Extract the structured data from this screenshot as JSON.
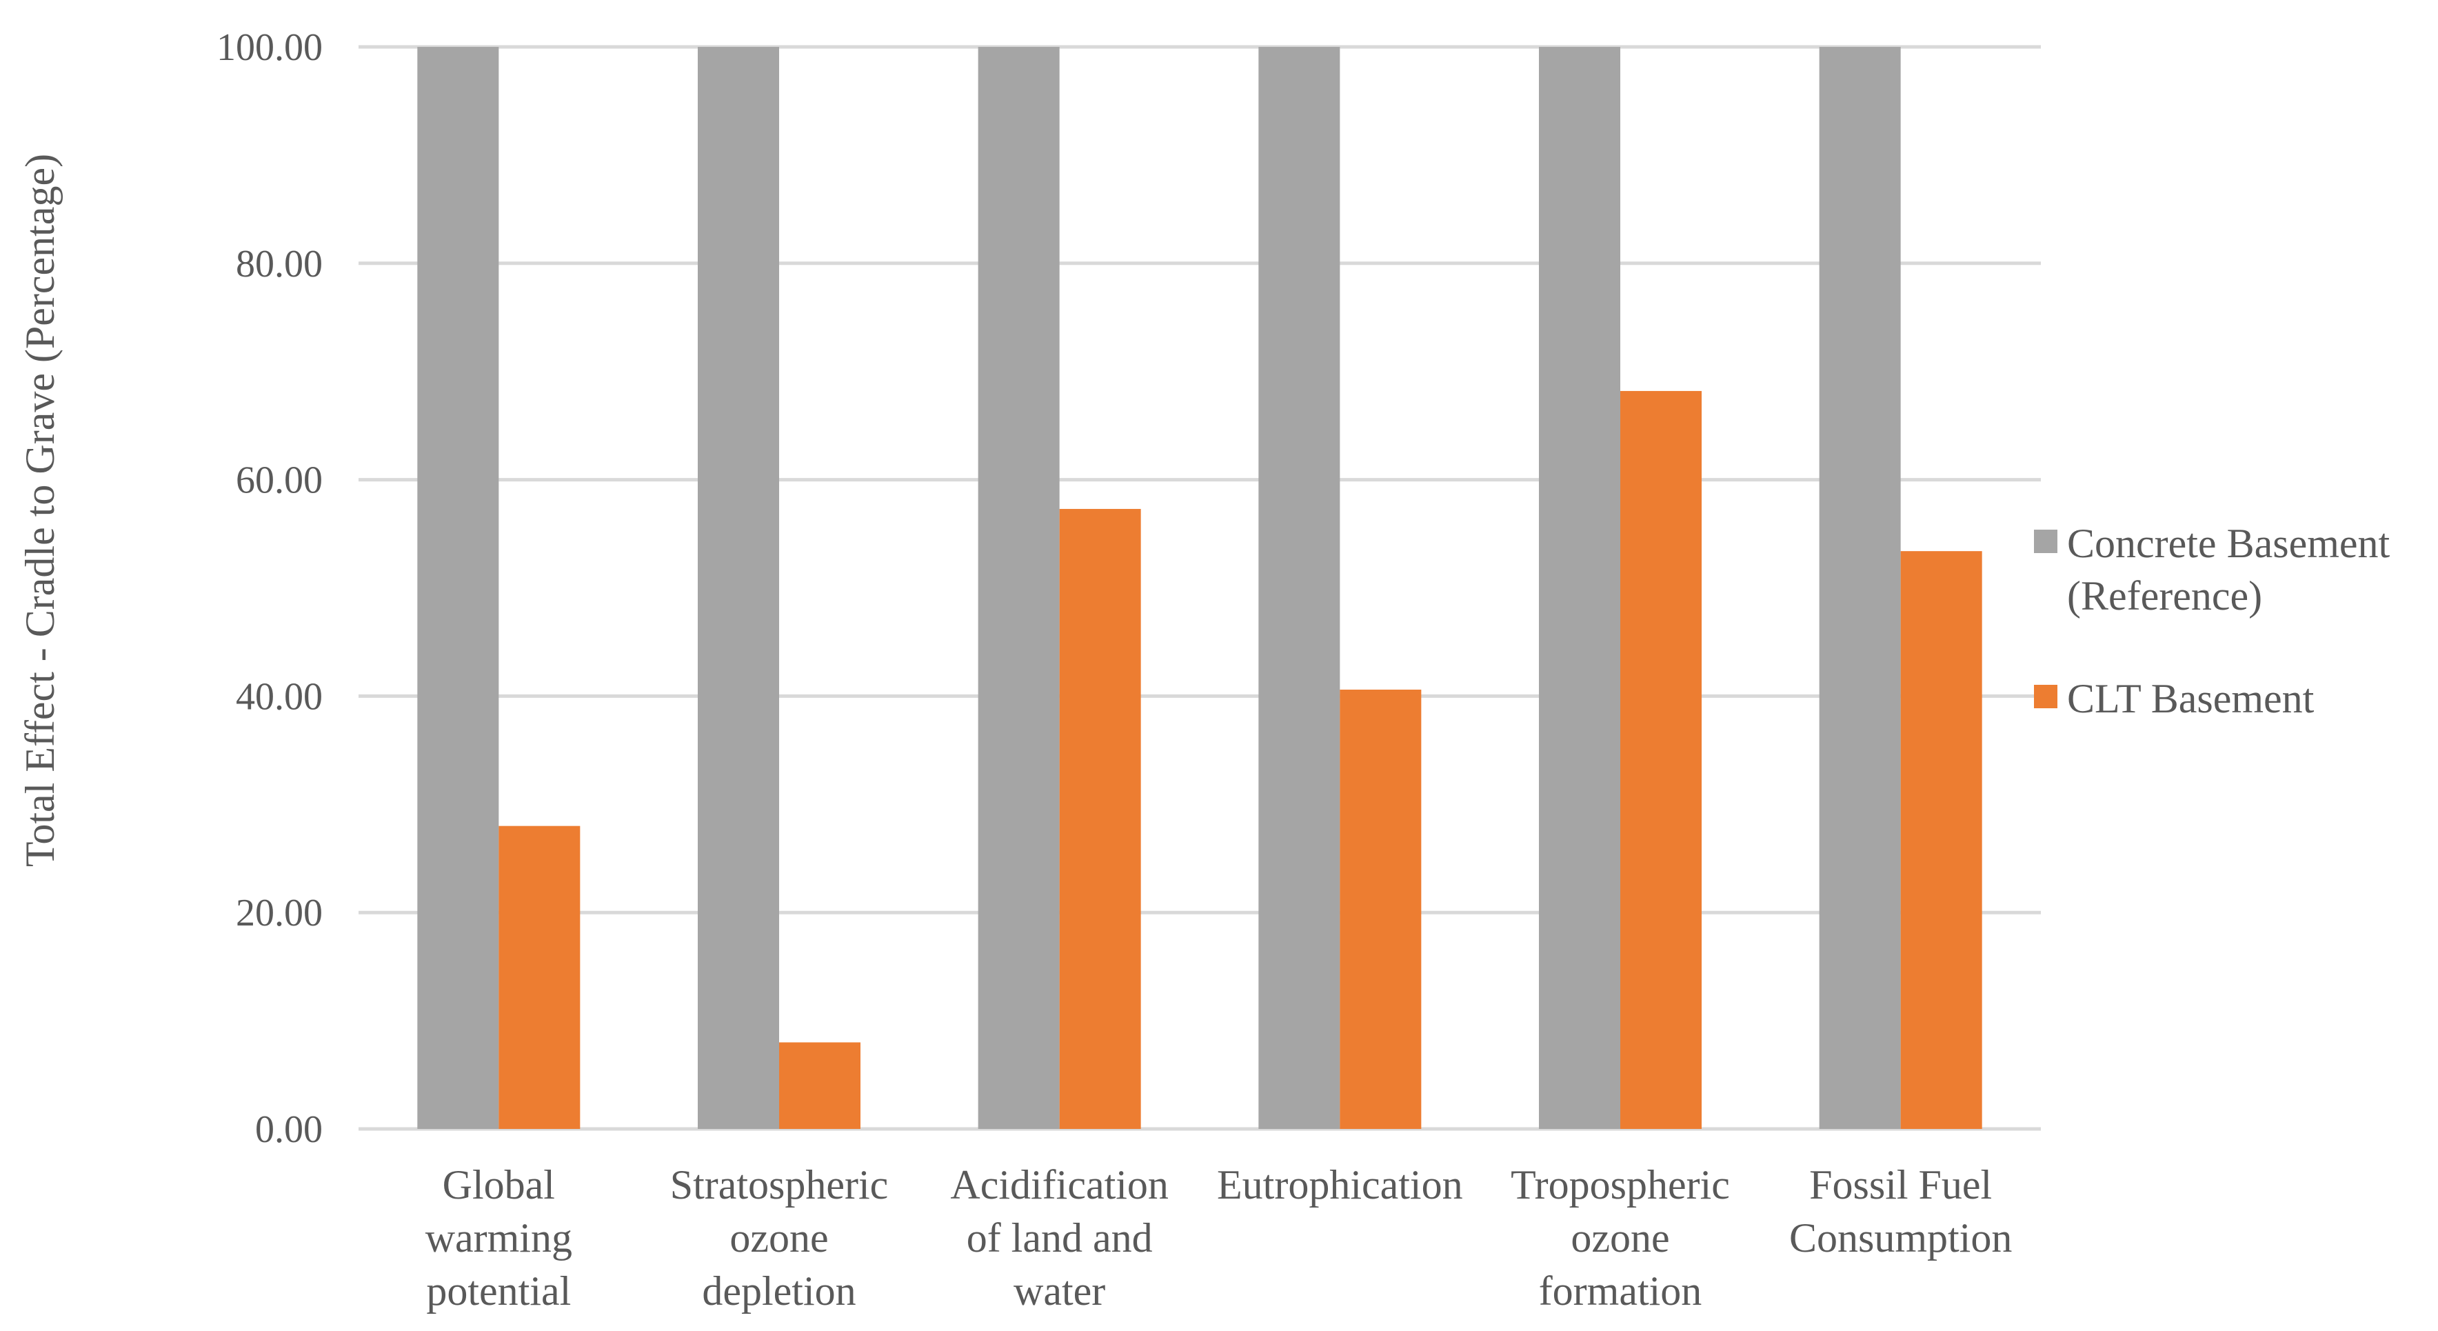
{
  "chart_data": {
    "type": "bar",
    "title": "",
    "xlabel": "",
    "ylabel": "Total Effect - Cradle to Grave (Percentage)",
    "ylim": [
      0,
      100
    ],
    "yticks": [
      "0.00",
      "20.00",
      "40.00",
      "60.00",
      "80.00",
      "100.00"
    ],
    "grid": true,
    "legend_position": "right",
    "categories": [
      [
        "Global",
        "warming",
        "potential"
      ],
      [
        "Stratospheric",
        "ozone",
        "depletion"
      ],
      [
        "Acidification",
        "of land and",
        "water"
      ],
      [
        "Eutrophication"
      ],
      [
        "Tropospheric",
        "ozone",
        "formation"
      ],
      [
        "Fossil Fuel",
        "Consumption"
      ]
    ],
    "series": [
      {
        "name": [
          "Concrete Basement",
          "(Reference)"
        ],
        "color": "#a5a5a5",
        "values": [
          100,
          100,
          100,
          100,
          100,
          100
        ]
      },
      {
        "name": [
          "CLT Basement"
        ],
        "color": "#ed7d31",
        "values": [
          28.0,
          8.0,
          57.3,
          40.6,
          68.2,
          53.4
        ]
      }
    ]
  }
}
